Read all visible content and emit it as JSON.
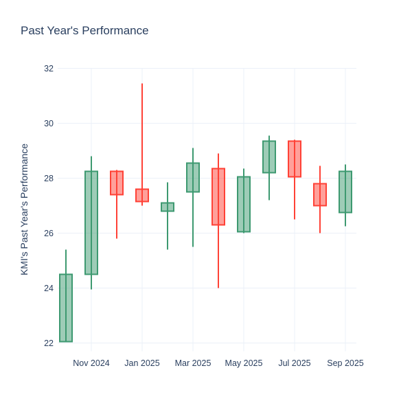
{
  "page": {
    "background": "#ffffff"
  },
  "header": {
    "title": "Past Year's Performance"
  },
  "chart_data": {
    "type": "candlestick",
    "title": "Past Year's Performance",
    "xlabel": "",
    "ylabel": "KMI's Past Year's Performance",
    "categories": [
      "Oct 2024",
      "Nov 2024",
      "Dec 2024",
      "Jan 2025",
      "Feb 2025",
      "Mar 2025",
      "Apr 2025",
      "May 2025",
      "Jun 2025",
      "Jul 2025",
      "Aug 2025",
      "Sep 2025"
    ],
    "series": [
      {
        "month": "Oct 2024",
        "open": 22.05,
        "high": 25.4,
        "low": 22.05,
        "close": 24.5
      },
      {
        "month": "Nov 2024",
        "open": 24.5,
        "high": 28.8,
        "low": 23.95,
        "close": 28.25
      },
      {
        "month": "Dec 2024",
        "open": 28.25,
        "high": 28.3,
        "low": 25.8,
        "close": 27.4
      },
      {
        "month": "Jan 2025",
        "open": 27.6,
        "high": 31.45,
        "low": 27.0,
        "close": 27.15
      },
      {
        "month": "Feb 2025",
        "open": 26.8,
        "high": 27.85,
        "low": 25.4,
        "close": 27.1
      },
      {
        "month": "Mar 2025",
        "open": 27.5,
        "high": 29.1,
        "low": 25.5,
        "close": 28.55
      },
      {
        "month": "Apr 2025",
        "open": 28.35,
        "high": 28.9,
        "low": 24.0,
        "close": 26.3
      },
      {
        "month": "May 2025",
        "open": 26.05,
        "high": 28.35,
        "low": 26.0,
        "close": 28.05
      },
      {
        "month": "Jun 2025",
        "open": 28.2,
        "high": 29.55,
        "low": 27.2,
        "close": 29.35
      },
      {
        "month": "Jul 2025",
        "open": 29.35,
        "high": 29.4,
        "low": 26.5,
        "close": 28.05
      },
      {
        "month": "Aug 2025",
        "open": 27.8,
        "high": 28.45,
        "low": 26.0,
        "close": 27.0
      },
      {
        "month": "Sep 2025",
        "open": 26.75,
        "high": 28.5,
        "low": 26.25,
        "close": 28.25
      }
    ],
    "x_ticks": {
      "labels": [
        "Nov 2024",
        "Jan 2025",
        "Mar 2025",
        "May 2025",
        "Jul 2025",
        "Sep 2025"
      ],
      "indices": [
        1,
        3,
        5,
        7,
        9,
        11
      ]
    },
    "y_ticks": [
      22,
      24,
      26,
      28,
      30,
      32
    ],
    "ylim": [
      21.7,
      32.0
    ],
    "grid": true,
    "legend": false,
    "colors": {
      "increasing_line": "#3D9970",
      "increasing_fill": "rgba(61,153,112,0.5)",
      "decreasing_line": "#FF4136",
      "decreasing_fill": "rgba(255,65,54,0.5)",
      "grid": "#EBF0F8",
      "text": "#2a3f5f"
    }
  }
}
